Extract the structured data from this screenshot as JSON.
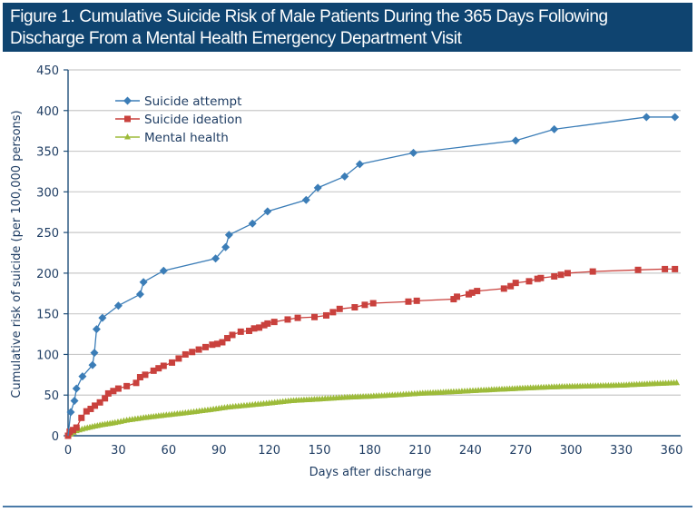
{
  "figure": {
    "title": "Figure 1. Cumulative Suicide Risk of Male Patients During the 365 Days Following\nDischarge From a Mental Health Emergency Department Visit"
  },
  "chart_data": {
    "type": "line",
    "title": "Figure 1. Cumulative Suicide Risk of Male Patients During the 365 Days Following Discharge From a Mental Health Emergency Department Visit",
    "xlabel": "Days after discharge",
    "ylabel": "Cumulative risk of suicide (per 100,000 persons)",
    "xlim": [
      0,
      365
    ],
    "ylim": [
      0,
      450
    ],
    "xticks": [
      0,
      30,
      60,
      90,
      120,
      150,
      180,
      210,
      240,
      270,
      300,
      330,
      360
    ],
    "yticks": [
      0,
      50,
      100,
      150,
      200,
      250,
      300,
      350,
      400,
      450
    ],
    "grid": "horizontal",
    "legend_position": "top-left",
    "series": [
      {
        "name": "Suicide attempt",
        "color": "#3b7db7",
        "marker": "diamond",
        "x": [
          0,
          1.6,
          3.8,
          5,
          8.6,
          14.6,
          15.7,
          17,
          20.5,
          30,
          43,
          45,
          57,
          88,
          94,
          96,
          110,
          119,
          142,
          149,
          165,
          174,
          206,
          267,
          290,
          345,
          362
        ],
        "y": [
          0,
          29,
          43,
          58,
          73,
          87,
          102,
          131,
          145,
          160,
          174,
          189,
          203,
          218,
          232,
          247,
          261,
          276,
          290,
          305,
          319,
          334,
          348,
          363,
          377,
          392,
          392
        ]
      },
      {
        "name": "Suicide ideation",
        "color": "#c9413d",
        "marker": "square",
        "x": [
          0,
          1,
          3,
          5,
          8,
          11,
          13.5,
          16,
          19,
          22,
          24,
          27,
          30,
          35,
          40.6,
          43,
          46,
          51,
          54,
          57,
          62,
          66,
          70,
          74,
          78,
          82,
          86,
          89,
          92,
          95,
          98,
          103,
          108,
          111,
          114,
          117,
          119,
          123,
          131,
          137,
          147,
          154,
          158,
          162,
          171,
          177,
          182,
          203,
          208,
          230,
          232,
          239,
          241,
          244,
          260,
          264,
          267,
          275,
          280,
          282,
          290,
          294,
          298,
          313,
          340,
          356,
          362
        ],
        "y": [
          0,
          5,
          7,
          10,
          22,
          30,
          33,
          37,
          41,
          46,
          52,
          55,
          58,
          61,
          65,
          72,
          75,
          80,
          83,
          86,
          90,
          95,
          100,
          103,
          106,
          109,
          112,
          113,
          115,
          120,
          124,
          128,
          129,
          132,
          133,
          136,
          138,
          140,
          143,
          145,
          146,
          148,
          152,
          156,
          158,
          161,
          163,
          165,
          166,
          168,
          171,
          174,
          176,
          178,
          181,
          184,
          188,
          190,
          193,
          194,
          196,
          198,
          200,
          202,
          204,
          205,
          205
        ]
      },
      {
        "name": "Mental health",
        "color": "#9dbb3a",
        "marker": "triangle",
        "x": [
          0,
          5,
          10,
          19,
          28,
          35,
          45,
          57,
          70,
          85,
          95,
          110,
          120,
          133,
          150,
          165,
          176,
          195,
          210,
          230,
          248,
          268,
          290,
          310,
          330,
          350,
          363
        ],
        "y": [
          0,
          6,
          9,
          13,
          16,
          19,
          22,
          25,
          28,
          32,
          35,
          38,
          40,
          43,
          45,
          47,
          48,
          50,
          52,
          54,
          56,
          58,
          60,
          61,
          62,
          64,
          65
        ]
      }
    ]
  }
}
